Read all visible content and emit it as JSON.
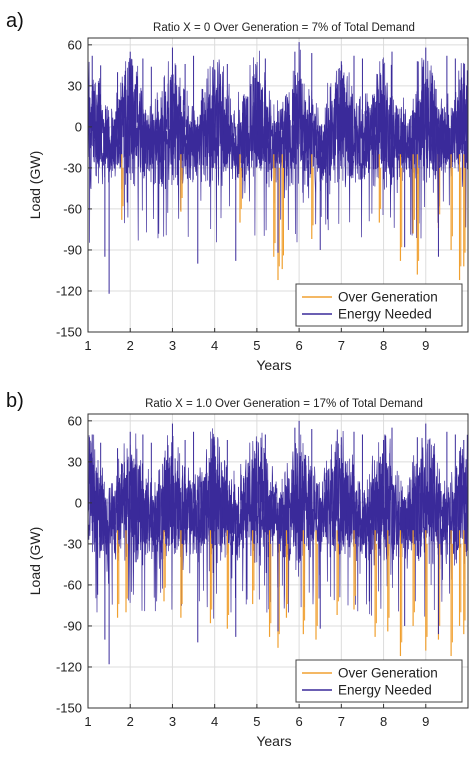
{
  "chart_data": [
    {
      "type": "line",
      "panel_label": "a)",
      "title": "Ratio X = 0  Over Generation = 7% of Total Demand",
      "xlabel": "Years",
      "ylabel": "Load (GW)",
      "xlim": [
        1,
        10
      ],
      "ylim": [
        -150,
        65
      ],
      "xticks": [
        1,
        2,
        3,
        4,
        5,
        6,
        7,
        8,
        9
      ],
      "yticks": [
        -150,
        -120,
        -90,
        -60,
        -30,
        0,
        30,
        60
      ],
      "grid": true,
      "legend_position": "bottom-right",
      "series": [
        {
          "name": "Over Generation",
          "color": "#f0a030",
          "x": [
            1.8,
            3.2,
            4.6,
            5.4,
            5.5,
            5.6,
            6.3,
            7.9,
            8.4,
            8.7,
            8.8,
            9.3,
            9.6,
            9.8,
            9.9
          ],
          "values": [
            -68,
            -62,
            -70,
            -95,
            -112,
            -104,
            -82,
            -70,
            -98,
            -78,
            -108,
            -74,
            -90,
            -112,
            -102
          ]
        },
        {
          "name": "Energy Needed",
          "color": "#3a2a9a",
          "x": [
            1.0,
            1.1,
            1.3,
            1.4,
            1.5,
            1.7,
            2.0,
            2.3,
            2.5,
            3.0,
            3.3,
            3.5,
            3.6,
            4.0,
            4.3,
            4.5,
            5.0,
            5.2,
            5.5,
            5.9,
            6.0,
            6.3,
            6.5,
            7.0,
            7.3,
            7.5,
            8.0,
            8.2,
            8.5,
            8.8,
            9.0,
            9.3,
            9.5,
            9.7,
            9.9
          ],
          "values": [
            48,
            52,
            45,
            -95,
            -122,
            40,
            55,
            50,
            44,
            58,
            46,
            52,
            -100,
            42,
            46,
            -98,
            45,
            50,
            -92,
            55,
            62,
            54,
            -90,
            48,
            52,
            50,
            46,
            55,
            -88,
            48,
            58,
            -95,
            52,
            50,
            46
          ]
        }
      ]
    },
    {
      "type": "line",
      "panel_label": "b)",
      "title": "Ratio X = 1.0 Over Generation = 17% of Total Demand",
      "xlabel": "Years",
      "ylabel": "Load (GW)",
      "xlim": [
        1,
        10
      ],
      "ylim": [
        -150,
        65
      ],
      "xticks": [
        1,
        2,
        3,
        4,
        5,
        6,
        7,
        8,
        9
      ],
      "yticks": [
        -150,
        -120,
        -90,
        -60,
        -30,
        0,
        30,
        60
      ],
      "grid": true,
      "legend_position": "bottom-right",
      "series": [
        {
          "name": "Over Generation",
          "color": "#f0a030",
          "x": [
            1.7,
            1.9,
            2.8,
            3.2,
            3.9,
            4.3,
            4.9,
            5.3,
            5.5,
            5.7,
            6.1,
            6.4,
            6.9,
            7.3,
            7.8,
            8.1,
            8.4,
            8.7,
            9.0,
            9.3,
            9.6,
            9.8,
            9.9
          ],
          "values": [
            -84,
            -80,
            -72,
            -84,
            -88,
            -92,
            -74,
            -98,
            -106,
            -84,
            -96,
            -100,
            -82,
            -78,
            -98,
            -94,
            -112,
            -90,
            -108,
            -100,
            -112,
            -90,
            -96
          ]
        },
        {
          "name": "Energy Needed",
          "color": "#3a2a9a",
          "x": [
            1.0,
            1.1,
            1.3,
            1.4,
            1.5,
            1.7,
            2.0,
            2.3,
            2.5,
            3.0,
            3.3,
            3.5,
            3.6,
            4.0,
            4.3,
            4.5,
            5.0,
            5.2,
            5.5,
            5.9,
            6.0,
            6.3,
            6.5,
            7.0,
            7.3,
            7.5,
            8.0,
            8.2,
            8.5,
            8.8,
            9.0,
            9.3,
            9.5,
            9.7,
            9.9
          ],
          "values": [
            48,
            50,
            44,
            -100,
            -118,
            40,
            52,
            50,
            44,
            58,
            46,
            52,
            -102,
            42,
            46,
            -98,
            45,
            50,
            -94,
            55,
            60,
            54,
            -92,
            48,
            52,
            50,
            46,
            55,
            -90,
            48,
            58,
            -96,
            52,
            50,
            46
          ]
        }
      ]
    }
  ]
}
